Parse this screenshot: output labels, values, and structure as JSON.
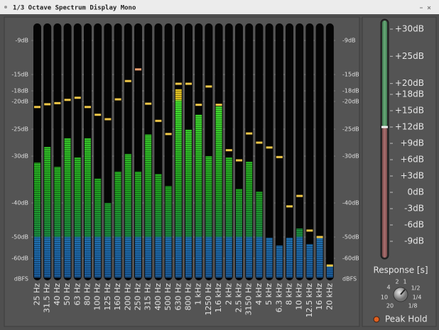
{
  "window": {
    "title": "1/3 Octave Spectrum Display Mono"
  },
  "meter": {
    "scale": [
      {
        "value": -9,
        "label": "-9dB"
      },
      {
        "value": -15,
        "label": "-15dB"
      },
      {
        "value": -18,
        "label": "-18dB"
      },
      {
        "value": -20,
        "label": "-20dB"
      },
      {
        "value": -25,
        "label": "-25dB"
      },
      {
        "value": -30,
        "label": "-30dB"
      },
      {
        "value": -40,
        "label": "-40dB"
      },
      {
        "value": -50,
        "label": "-50dB"
      },
      {
        "value": -60,
        "label": "-60dB"
      },
      {
        "value": -70,
        "label": "dBFS"
      }
    ],
    "bands": [
      {
        "label": "25 Hz",
        "level": -31.4,
        "peak": -21
      },
      {
        "label": "31.5 Hz",
        "level": -28.3,
        "peak": -20.5
      },
      {
        "label": "40 Hz",
        "level": -32.3,
        "peak": -20.3
      },
      {
        "label": "50 Hz",
        "level": -26.7,
        "peak": -19.7
      },
      {
        "label": "63 Hz",
        "level": -30.3,
        "peak": -19.3
      },
      {
        "label": "80 Hz",
        "level": -26.7,
        "peak": -21
      },
      {
        "label": "100 Hz",
        "level": -34.8,
        "peak": -22.4
      },
      {
        "label": "125 Hz",
        "level": -40,
        "peak": -23.2
      },
      {
        "label": "160 Hz",
        "level": -33.3,
        "peak": -19.6
      },
      {
        "label": "200 Hz",
        "level": -29.6,
        "peak": -16.2
      },
      {
        "label": "250 Hz",
        "level": -33.3,
        "peak": -14.1
      },
      {
        "label": "315 Hz",
        "level": -26,
        "peak": -20.4
      },
      {
        "label": "400 Hz",
        "level": -33.8,
        "peak": -23.5
      },
      {
        "label": "500 Hz",
        "level": -36.4,
        "peak": -25.9
      },
      {
        "label": "630 Hz",
        "level": -17.7,
        "peak": -16.7
      },
      {
        "label": "800 Hz",
        "level": -25.1,
        "peak": -16.7
      },
      {
        "label": "1 kHz",
        "level": -22.4,
        "peak": -20.6
      },
      {
        "label": "1250 Hz",
        "level": -30,
        "peak": -17.2
      },
      {
        "label": "1.6 kHz",
        "level": -20.9,
        "peak": -20.6
      },
      {
        "label": "2 kHz",
        "level": -30.3,
        "peak": -28.9
      },
      {
        "label": "2.5 kHz",
        "level": -37,
        "peak": -30.9
      },
      {
        "label": "3150 Hz",
        "level": -31.2,
        "peak": -25.8
      },
      {
        "label": "4 kHz",
        "level": -37.6,
        "peak": -27.5
      },
      {
        "label": "5 kHz",
        "level": -50.3,
        "peak": -28.4
      },
      {
        "label": "6.3 kHz",
        "level": -54,
        "peak": -30.2
      },
      {
        "label": "8 kHz",
        "level": -50.3,
        "peak": -41
      },
      {
        "label": "10 kHz",
        "level": -47.5,
        "peak": -38.5
      },
      {
        "label": "12.5 kHz",
        "level": -53.3,
        "peak": -48.1
      },
      {
        "label": "16 kHz",
        "level": -50.3,
        "peak": -50
      },
      {
        "label": "20 kHz",
        "level": -63.8,
        "peak": -63.5
      }
    ]
  },
  "response": {
    "scale": [
      {
        "value": 30,
        "label": "+30dB"
      },
      {
        "value": 25,
        "label": "+25dB"
      },
      {
        "value": 20,
        "label": "+20dB"
      },
      {
        "value": 18,
        "label": "+18dB"
      },
      {
        "value": 15,
        "label": "+15dB"
      },
      {
        "value": 12,
        "label": "+12dB"
      },
      {
        "value": 9,
        "label": "+9dB"
      },
      {
        "value": 6,
        "label": "+6dB"
      },
      {
        "value": 3,
        "label": "+3dB"
      },
      {
        "value": 0,
        "label": "0dB"
      },
      {
        "value": -3,
        "label": "-3dB"
      },
      {
        "value": -6,
        "label": "-6dB"
      },
      {
        "value": -9,
        "label": "-9dB"
      }
    ],
    "gain": 12,
    "label": "Response [s]",
    "knob_labels": [
      "2",
      "1",
      "1/2",
      "1/4",
      "1/8",
      "20",
      "10",
      "4"
    ]
  },
  "peak_hold": {
    "label": "Peak Hold"
  }
}
